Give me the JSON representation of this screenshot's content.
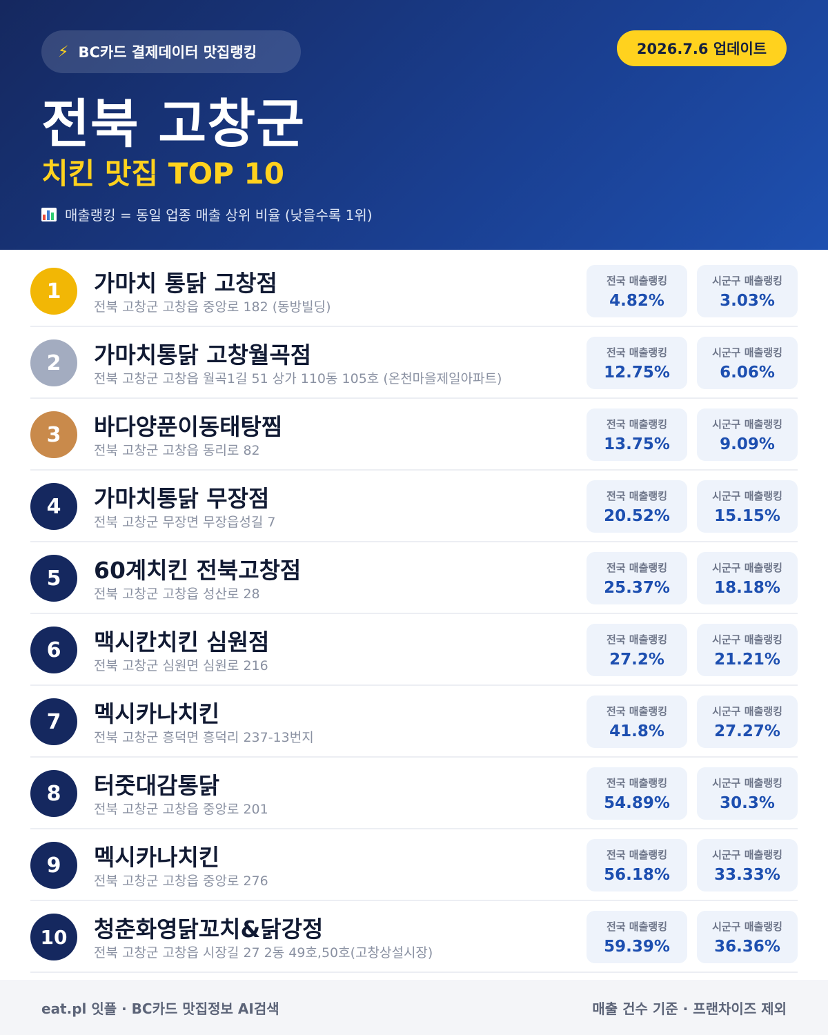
{
  "header": {
    "source_label": "BC카드 결제데이터 맛집랭킹",
    "bolt_icon": "⚡",
    "update_label": "2026.7.6 업데이트",
    "region": "전북 고창군",
    "category": "치킨 맛집 TOP 10",
    "legend": "매출랭킹 = 동일 업종 매출 상위 비율 (낮을수록 1위)"
  },
  "stat_labels": {
    "national": "전국 매출랭킹",
    "local": "시군구 매출랭킹"
  },
  "restaurants": [
    {
      "rank": "1",
      "name": "가마치 통닭 고창점",
      "address": "전북 고창군 고창읍 중앙로 182 (동방빌딩)",
      "national": "4.82%",
      "local": "3.03%"
    },
    {
      "rank": "2",
      "name": "가마치통닭 고창월곡점",
      "address": "전북 고창군 고창읍 월곡1길 51 상가 110동 105호 (온천마을제일아파트)",
      "national": "12.75%",
      "local": "6.06%"
    },
    {
      "rank": "3",
      "name": "바다양푼이동태탕찜",
      "address": "전북 고창군 고창읍 동리로 82",
      "national": "13.75%",
      "local": "9.09%"
    },
    {
      "rank": "4",
      "name": "가마치통닭 무장점",
      "address": "전북 고창군 무장면 무장읍성길 7",
      "national": "20.52%",
      "local": "15.15%"
    },
    {
      "rank": "5",
      "name": "60계치킨 전북고창점",
      "address": "전북 고창군 고창읍 성산로 28",
      "national": "25.37%",
      "local": "18.18%"
    },
    {
      "rank": "6",
      "name": "맥시칸치킨 심원점",
      "address": "전북 고창군 심원면 심원로 216",
      "national": "27.2%",
      "local": "21.21%"
    },
    {
      "rank": "7",
      "name": "멕시카나치킨",
      "address": "전북 고창군 흥덕면 흥덕리 237-13번지",
      "national": "41.8%",
      "local": "27.27%"
    },
    {
      "rank": "8",
      "name": "터줏대감통닭",
      "address": "전북 고창군 고창읍 중앙로 201",
      "national": "54.89%",
      "local": "30.3%"
    },
    {
      "rank": "9",
      "name": "멕시카나치킨",
      "address": "전북 고창군 고창읍 중앙로 276",
      "national": "56.18%",
      "local": "33.33%"
    },
    {
      "rank": "10",
      "name": "청춘화영닭꼬치&닭강정",
      "address": "전북 고창군 고창읍 시장길 27 2동 49호,50호(고창상설시장)",
      "national": "59.39%",
      "local": "36.36%"
    }
  ],
  "footer": {
    "left": "eat.pl 잇플 · BC카드 맛집정보 AI검색",
    "right": "매출 건수 기준 · 프랜차이즈 제외"
  },
  "colors": {
    "header_start": "#15285f",
    "header_end": "#1e50b0",
    "accent_yellow": "#ffd21e",
    "gold": "#f2b705",
    "silver": "#a3acc0",
    "bronze": "#c98a4b",
    "value_blue": "#1d4fb0"
  }
}
